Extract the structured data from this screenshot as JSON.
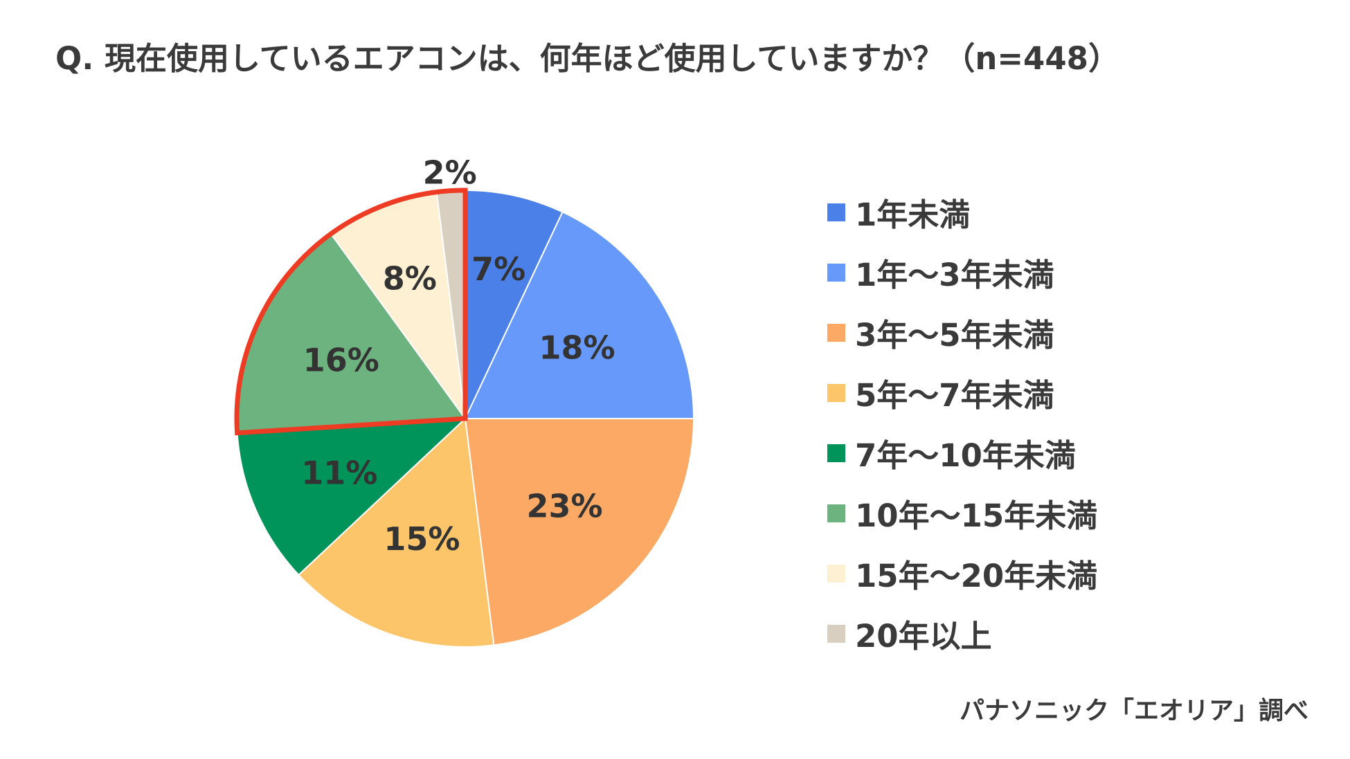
{
  "title": "Q. 現在使用しているエアコンは、何年ほど使用していますか？（n=448）",
  "source": "パナソニック「エオリア」調べ",
  "highlight_color": "#ee3b24",
  "chart_data": {
    "type": "pie",
    "title": "Q. 現在使用しているエアコンは、何年ほど使用していますか？（n=448）",
    "n": 448,
    "unit": "%",
    "start": "12 o'clock",
    "direction": "clockwise",
    "legend_position": "right",
    "slices": [
      {
        "label": "1年未満",
        "value": 7,
        "display": "7%",
        "color": "#4a80e8"
      },
      {
        "label": "1年～3年未満",
        "value": 18,
        "display": "18%",
        "color": "#6699fa"
      },
      {
        "label": "3年～5年未満",
        "value": 23,
        "display": "23%",
        "color": "#fca966"
      },
      {
        "label": "5年～7年未満",
        "value": 15,
        "display": "15%",
        "color": "#fcc56a"
      },
      {
        "label": "7年～10年未満",
        "value": 11,
        "display": "11%",
        "color": "#00945a"
      },
      {
        "label": "10年～15年未満",
        "value": 16,
        "display": "16%",
        "color": "#6db37f"
      },
      {
        "label": "15年～20年未満",
        "value": 8,
        "display": "8%",
        "color": "#fdf0d3"
      },
      {
        "label": "20年以上",
        "value": 2,
        "display": "2%",
        "color": "#d8cfc0"
      }
    ],
    "highlighted_slices": [
      "10年～15年未満",
      "15年～20年未満",
      "20年以上"
    ]
  }
}
